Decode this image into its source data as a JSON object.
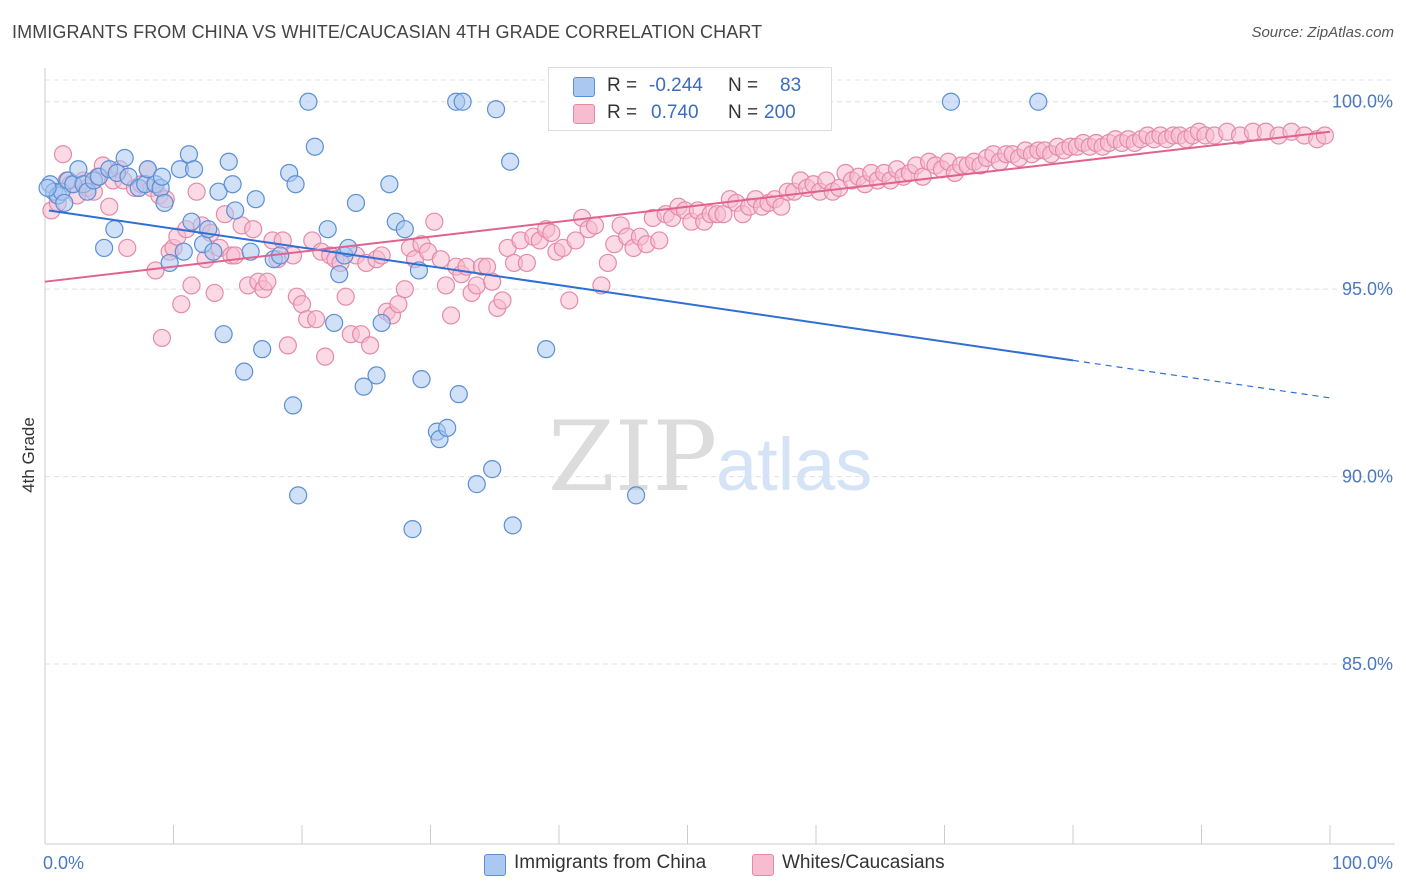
{
  "title": "IMMIGRANTS FROM CHINA VS WHITE/CAUCASIAN 4TH GRADE CORRELATION CHART",
  "source": "Source: ZipAtlas.com",
  "watermark": {
    "zip": "ZIP",
    "atlas": "atlas"
  },
  "legend": {
    "rows": [
      {
        "r_label": "R =",
        "r_value": "-0.244",
        "n_label": "N =",
        "n_value": "83"
      },
      {
        "r_label": "R =",
        "r_value": "0.740",
        "n_label": "N =",
        "n_value": "200"
      }
    ]
  },
  "bottom_legend": [
    "Immigrants from China",
    "Whites/Caucasians"
  ],
  "colors": {
    "blue_fill": "#aac8f0",
    "blue_stroke": "#5b8fd6",
    "blue_line": "#2f6fd4",
    "pink_fill": "#f7bcd0",
    "pink_stroke": "#e58aa9",
    "pink_line": "#e0628e",
    "tick_color": "#4a78c2"
  },
  "chart_data": {
    "type": "scatter",
    "title": "IMMIGRANTS FROM CHINA VS WHITE/CAUCASIAN 4TH GRADE CORRELATION CHART",
    "xlabel": "",
    "ylabel": "4th Grade",
    "xlim": [
      0,
      100
    ],
    "ylim": [
      80.2,
      100.9
    ],
    "x_tick_labels": [
      "0.0%",
      "100.0%"
    ],
    "y_ticks": [
      85,
      90,
      95,
      100
    ],
    "y_tick_labels": [
      "85.0%",
      "90.0%",
      "95.0%",
      "100.0%"
    ],
    "grid": true,
    "legend_position": "top-center",
    "series": [
      {
        "name": "Immigrants from China",
        "color": "#aac8f0",
        "r": -0.244,
        "n": 83,
        "trend": {
          "x0": 0.3,
          "y0": 97.1,
          "x1": 80.0,
          "y1": 93.1,
          "dash_to_x": 100.0,
          "dash_to_y": 92.1
        },
        "points": [
          [
            0.4,
            97.8
          ],
          [
            0.7,
            97.6
          ],
          [
            1.0,
            97.5
          ],
          [
            1.3,
            97.6
          ],
          [
            1.5,
            97.3
          ],
          [
            1.8,
            97.9
          ],
          [
            2.2,
            97.8
          ],
          [
            2.6,
            98.2
          ],
          [
            3.0,
            97.8
          ],
          [
            3.3,
            97.6
          ],
          [
            3.8,
            97.9
          ],
          [
            4.2,
            98.0
          ],
          [
            4.6,
            96.1
          ],
          [
            5.0,
            98.2
          ],
          [
            5.4,
            96.6
          ],
          [
            5.6,
            98.1
          ],
          [
            6.2,
            98.5
          ],
          [
            6.5,
            98.0
          ],
          [
            7.3,
            97.7
          ],
          [
            7.8,
            97.8
          ],
          [
            8.0,
            98.2
          ],
          [
            8.6,
            97.8
          ],
          [
            9.0,
            97.7
          ],
          [
            9.1,
            98.0
          ],
          [
            9.3,
            97.3
          ],
          [
            9.7,
            95.7
          ],
          [
            10.5,
            98.2
          ],
          [
            10.8,
            96.0
          ],
          [
            11.2,
            98.6
          ],
          [
            11.4,
            96.8
          ],
          [
            11.6,
            98.2
          ],
          [
            12.3,
            96.2
          ],
          [
            12.7,
            96.6
          ],
          [
            13.1,
            96.0
          ],
          [
            13.5,
            97.6
          ],
          [
            13.9,
            93.8
          ],
          [
            14.3,
            98.4
          ],
          [
            14.6,
            97.8
          ],
          [
            14.8,
            97.1
          ],
          [
            15.5,
            92.8
          ],
          [
            16.0,
            96.0
          ],
          [
            16.4,
            97.4
          ],
          [
            16.9,
            93.4
          ],
          [
            17.8,
            95.8
          ],
          [
            18.3,
            95.9
          ],
          [
            19.0,
            98.1
          ],
          [
            19.3,
            91.9
          ],
          [
            19.5,
            97.8
          ],
          [
            19.7,
            89.5
          ],
          [
            20.5,
            100.0
          ],
          [
            21.0,
            98.8
          ],
          [
            22.0,
            96.6
          ],
          [
            22.5,
            94.1
          ],
          [
            22.9,
            95.4
          ],
          [
            23.3,
            95.9
          ],
          [
            23.6,
            96.1
          ],
          [
            24.2,
            97.3
          ],
          [
            24.8,
            92.4
          ],
          [
            25.8,
            92.7
          ],
          [
            26.2,
            94.1
          ],
          [
            26.8,
            97.8
          ],
          [
            27.3,
            96.8
          ],
          [
            28.0,
            96.6
          ],
          [
            28.6,
            88.6
          ],
          [
            29.1,
            95.5
          ],
          [
            29.3,
            92.6
          ],
          [
            30.5,
            91.2
          ],
          [
            30.7,
            91.0
          ],
          [
            31.3,
            91.3
          ],
          [
            32.0,
            100.0
          ],
          [
            32.2,
            92.2
          ],
          [
            32.5,
            100.0
          ],
          [
            33.6,
            89.8
          ],
          [
            34.8,
            90.2
          ],
          [
            35.1,
            99.8
          ],
          [
            36.2,
            98.4
          ],
          [
            36.4,
            88.7
          ],
          [
            39.0,
            93.4
          ],
          [
            41.8,
            100.0
          ],
          [
            46.0,
            89.5
          ],
          [
            70.5,
            100.0
          ],
          [
            77.3,
            100.0
          ],
          [
            0.2,
            97.7
          ]
        ]
      },
      {
        "name": "Whites/Caucasians",
        "color": "#f7bcd0",
        "r": 0.74,
        "n": 200,
        "trend": {
          "x0": 0.0,
          "y0": 95.2,
          "x1": 100.0,
          "y1": 99.2
        },
        "points": [
          [
            0.5,
            97.1
          ],
          [
            1.0,
            97.3
          ],
          [
            1.4,
            98.6
          ],
          [
            1.7,
            97.9
          ],
          [
            2.0,
            97.8
          ],
          [
            2.5,
            97.5
          ],
          [
            3.0,
            97.9
          ],
          [
            3.3,
            97.7
          ],
          [
            3.8,
            97.6
          ],
          [
            4.1,
            98.0
          ],
          [
            4.5,
            98.3
          ],
          [
            5.0,
            97.2
          ],
          [
            5.3,
            97.9
          ],
          [
            5.8,
            98.2
          ],
          [
            6.1,
            97.9
          ],
          [
            6.4,
            96.1
          ],
          [
            7.0,
            97.7
          ],
          [
            7.5,
            97.8
          ],
          [
            8.0,
            98.2
          ],
          [
            8.3,
            97.7
          ],
          [
            8.6,
            95.5
          ],
          [
            8.9,
            97.5
          ],
          [
            9.1,
            93.7
          ],
          [
            9.4,
            97.4
          ],
          [
            9.7,
            96.0
          ],
          [
            10.0,
            96.1
          ],
          [
            10.3,
            96.4
          ],
          [
            10.6,
            94.6
          ],
          [
            11.0,
            96.6
          ],
          [
            11.4,
            95.1
          ],
          [
            11.8,
            97.6
          ],
          [
            12.2,
            96.7
          ],
          [
            12.5,
            95.8
          ],
          [
            12.9,
            96.5
          ],
          [
            13.2,
            94.9
          ],
          [
            13.6,
            96.1
          ],
          [
            14.0,
            97.0
          ],
          [
            14.5,
            95.9
          ],
          [
            14.8,
            95.9
          ],
          [
            15.3,
            96.7
          ],
          [
            15.8,
            95.1
          ],
          [
            16.2,
            96.6
          ],
          [
            16.6,
            95.2
          ],
          [
            17.0,
            95.0
          ],
          [
            17.3,
            95.2
          ],
          [
            17.7,
            96.3
          ],
          [
            18.1,
            95.8
          ],
          [
            18.5,
            96.3
          ],
          [
            18.9,
            93.5
          ],
          [
            19.3,
            95.9
          ],
          [
            19.6,
            94.8
          ],
          [
            20.0,
            94.6
          ],
          [
            20.4,
            94.2
          ],
          [
            20.8,
            96.3
          ],
          [
            21.1,
            94.2
          ],
          [
            21.5,
            96.0
          ],
          [
            21.8,
            93.2
          ],
          [
            22.2,
            95.9
          ],
          [
            22.6,
            95.8
          ],
          [
            23.0,
            95.7
          ],
          [
            23.4,
            94.8
          ],
          [
            23.8,
            93.8
          ],
          [
            24.2,
            95.9
          ],
          [
            24.6,
            93.8
          ],
          [
            25.0,
            95.7
          ],
          [
            25.3,
            93.5
          ],
          [
            25.8,
            95.8
          ],
          [
            26.2,
            95.9
          ],
          [
            26.6,
            94.4
          ],
          [
            27.0,
            94.3
          ],
          [
            27.5,
            94.6
          ],
          [
            28.0,
            95.0
          ],
          [
            28.4,
            96.1
          ],
          [
            28.8,
            95.8
          ],
          [
            29.3,
            96.2
          ],
          [
            29.8,
            96.0
          ],
          [
            30.3,
            96.8
          ],
          [
            30.8,
            95.8
          ],
          [
            31.2,
            95.1
          ],
          [
            31.6,
            94.3
          ],
          [
            32.0,
            95.6
          ],
          [
            32.4,
            95.4
          ],
          [
            32.8,
            95.6
          ],
          [
            33.2,
            94.9
          ],
          [
            33.6,
            95.1
          ],
          [
            34.0,
            95.6
          ],
          [
            34.4,
            95.6
          ],
          [
            34.8,
            95.2
          ],
          [
            35.2,
            94.5
          ],
          [
            35.6,
            94.7
          ],
          [
            36.0,
            96.1
          ],
          [
            36.5,
            95.7
          ],
          [
            37.0,
            96.3
          ],
          [
            37.5,
            95.7
          ],
          [
            38.0,
            96.4
          ],
          [
            38.5,
            96.3
          ],
          [
            39.0,
            96.6
          ],
          [
            39.4,
            96.5
          ],
          [
            39.8,
            96.0
          ],
          [
            40.3,
            96.1
          ],
          [
            40.8,
            94.7
          ],
          [
            41.3,
            96.3
          ],
          [
            41.8,
            96.9
          ],
          [
            42.3,
            96.6
          ],
          [
            42.8,
            96.7
          ],
          [
            43.3,
            95.1
          ],
          [
            43.8,
            95.7
          ],
          [
            44.3,
            96.2
          ],
          [
            44.8,
            96.7
          ],
          [
            45.3,
            96.4
          ],
          [
            45.8,
            96.1
          ],
          [
            46.3,
            96.4
          ],
          [
            46.8,
            96.2
          ],
          [
            47.3,
            96.9
          ],
          [
            47.8,
            96.3
          ],
          [
            48.3,
            97.0
          ],
          [
            48.8,
            96.9
          ],
          [
            49.3,
            97.2
          ],
          [
            49.8,
            97.1
          ],
          [
            50.3,
            96.8
          ],
          [
            50.8,
            97.1
          ],
          [
            51.3,
            96.8
          ],
          [
            51.8,
            97.0
          ],
          [
            52.3,
            97.0
          ],
          [
            52.8,
            97.0
          ],
          [
            53.3,
            97.4
          ],
          [
            53.8,
            97.3
          ],
          [
            54.3,
            97.0
          ],
          [
            54.8,
            97.2
          ],
          [
            55.3,
            97.4
          ],
          [
            55.8,
            97.2
          ],
          [
            56.3,
            97.3
          ],
          [
            56.8,
            97.4
          ],
          [
            57.3,
            97.2
          ],
          [
            57.8,
            97.6
          ],
          [
            58.3,
            97.6
          ],
          [
            58.8,
            97.9
          ],
          [
            59.3,
            97.7
          ],
          [
            59.8,
            97.8
          ],
          [
            60.3,
            97.6
          ],
          [
            60.8,
            97.9
          ],
          [
            61.3,
            97.6
          ],
          [
            61.8,
            97.7
          ],
          [
            62.3,
            98.1
          ],
          [
            62.8,
            97.9
          ],
          [
            63.3,
            98.0
          ],
          [
            63.8,
            97.8
          ],
          [
            64.3,
            98.1
          ],
          [
            64.8,
            97.9
          ],
          [
            65.3,
            98.1
          ],
          [
            65.8,
            97.9
          ],
          [
            66.3,
            98.2
          ],
          [
            66.8,
            98.0
          ],
          [
            67.3,
            98.1
          ],
          [
            67.8,
            98.3
          ],
          [
            68.3,
            98.0
          ],
          [
            68.8,
            98.4
          ],
          [
            69.3,
            98.3
          ],
          [
            69.8,
            98.2
          ],
          [
            70.3,
            98.4
          ],
          [
            70.8,
            98.1
          ],
          [
            71.3,
            98.3
          ],
          [
            71.8,
            98.3
          ],
          [
            72.3,
            98.4
          ],
          [
            72.8,
            98.3
          ],
          [
            73.3,
            98.5
          ],
          [
            73.8,
            98.6
          ],
          [
            74.3,
            98.4
          ],
          [
            74.8,
            98.6
          ],
          [
            75.3,
            98.6
          ],
          [
            75.8,
            98.5
          ],
          [
            76.3,
            98.7
          ],
          [
            76.8,
            98.6
          ],
          [
            77.3,
            98.7
          ],
          [
            77.8,
            98.7
          ],
          [
            78.3,
            98.6
          ],
          [
            78.8,
            98.8
          ],
          [
            79.3,
            98.7
          ],
          [
            79.8,
            98.8
          ],
          [
            80.3,
            98.8
          ],
          [
            80.8,
            98.9
          ],
          [
            81.3,
            98.8
          ],
          [
            81.8,
            98.9
          ],
          [
            82.3,
            98.8
          ],
          [
            82.8,
            98.9
          ],
          [
            83.3,
            99.0
          ],
          [
            83.8,
            98.9
          ],
          [
            84.3,
            99.0
          ],
          [
            84.8,
            98.9
          ],
          [
            85.3,
            99.0
          ],
          [
            85.8,
            99.1
          ],
          [
            86.3,
            99.0
          ],
          [
            86.8,
            99.1
          ],
          [
            87.3,
            99.0
          ],
          [
            87.8,
            99.1
          ],
          [
            88.3,
            99.1
          ],
          [
            88.8,
            99.0
          ],
          [
            89.3,
            99.1
          ],
          [
            89.8,
            99.2
          ],
          [
            90.3,
            99.1
          ],
          [
            91.0,
            99.1
          ],
          [
            92.0,
            99.2
          ],
          [
            93.0,
            99.1
          ],
          [
            94.0,
            99.2
          ],
          [
            95.0,
            99.2
          ],
          [
            96.0,
            99.1
          ],
          [
            97.0,
            99.2
          ],
          [
            98.0,
            99.1
          ],
          [
            99.0,
            99.0
          ],
          [
            99.6,
            99.1
          ]
        ]
      }
    ]
  }
}
